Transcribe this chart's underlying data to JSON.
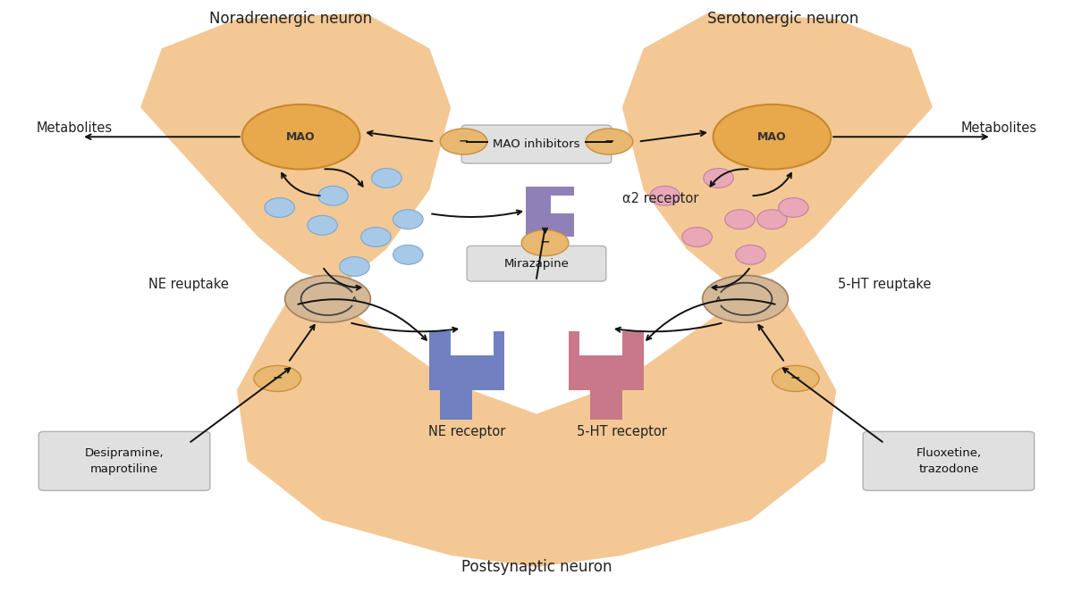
{
  "bg_color": "#ffffff",
  "neuron_color": "#f2c28a",
  "mao_circle_color": "#e8a84c",
  "mao_circle_edge": "#c8882c",
  "ne_dot_color": "#a8c8e8",
  "ht_dot_color": "#e8a8b8",
  "reuptake_circle_color": "#d4b896",
  "ne_receptor_color": "#7080c0",
  "ht_receptor_color": "#c87888",
  "alpha2_color": "#9080b8",
  "inhibitor_box_color": "#e0e0e0",
  "inhibitor_box_edge": "#b0b0b0",
  "small_circle_color": "#e8b870",
  "small_circle_edge": "#c89040",
  "title_left": "Noradrenergic neuron",
  "title_right": "Serotonergic neuron",
  "title_bottom": "Postsynaptic neuron",
  "label_mao_inhibitors": "MAO inhibitors",
  "label_mirazapine": "Mirazapine",
  "label_ne_receptor": "NE receptor",
  "label_ht_receptor": "5-HT receptor",
  "label_alpha2": "α2 receptor",
  "label_ne_reuptake": "NE reuptake",
  "label_ht_reuptake": "5-HT reuptake",
  "label_metabolites_left": "Metabolites",
  "label_metabolites_right": "Metabolites",
  "label_desipramine": "Desipramine,\nmaprotiline",
  "label_fluoxetine": "Fluoxetine,\ntrazodone",
  "label_mao": "MAO",
  "figsize": [
    12.0,
    6.63
  ],
  "dpi": 100
}
